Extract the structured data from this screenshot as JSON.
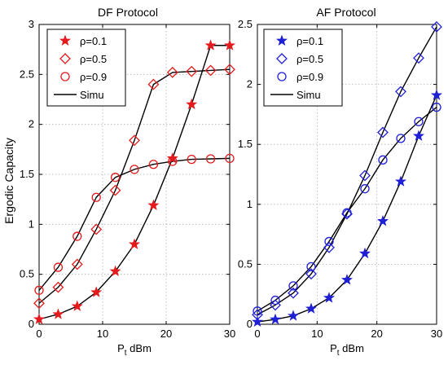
{
  "chart_data": [
    {
      "type": "line",
      "title": "DF Protocol",
      "xlabel": "P",
      "xlabel_sub": "t",
      "xlabel_unit": "dBm",
      "ylabel": "Ergodic Capacity",
      "xlim": [
        0,
        30
      ],
      "ylim": [
        0,
        3
      ],
      "xticks": [
        0,
        10,
        20,
        30
      ],
      "yticks": [
        0,
        0.5,
        1,
        1.5,
        2,
        2.5,
        3
      ],
      "grid": true,
      "legend_position": "top-left",
      "color": "#e41a1c",
      "x": [
        0,
        3,
        6,
        9,
        12,
        15,
        18,
        21,
        24,
        27,
        30
      ],
      "series": [
        {
          "name": "ρ=0.1",
          "marker": "star",
          "values": [
            0.05,
            0.1,
            0.18,
            0.32,
            0.53,
            0.8,
            1.19,
            1.66,
            2.2,
            2.79,
            2.79
          ]
        },
        {
          "name": "ρ=0.5",
          "marker": "diamond",
          "values": [
            0.21,
            0.37,
            0.6,
            0.95,
            1.34,
            1.84,
            2.4,
            2.52,
            2.53,
            2.54,
            2.55
          ]
        },
        {
          "name": "ρ=0.9",
          "marker": "circle",
          "values": [
            0.34,
            0.57,
            0.88,
            1.27,
            1.47,
            1.55,
            1.6,
            1.63,
            1.65,
            1.655,
            1.66
          ]
        }
      ],
      "simu_label": "Simu",
      "simu_color": "#000000"
    },
    {
      "type": "line",
      "title": "AF Protocol",
      "xlabel": "P",
      "xlabel_sub": "t",
      "xlabel_unit": "dBm",
      "ylabel": "",
      "xlim": [
        0,
        30
      ],
      "ylim": [
        0,
        2.5
      ],
      "xticks": [
        0,
        10,
        20,
        30
      ],
      "yticks": [
        0,
        0.5,
        1,
        1.5,
        2,
        2.5
      ],
      "grid": true,
      "legend_position": "top-left",
      "color": "#1f1fd6",
      "x": [
        0,
        3,
        6,
        9,
        12,
        15,
        18,
        21,
        24,
        27,
        30
      ],
      "series": [
        {
          "name": "ρ=0.1",
          "marker": "star",
          "values": [
            0.02,
            0.04,
            0.07,
            0.13,
            0.22,
            0.37,
            0.59,
            0.86,
            1.19,
            1.57,
            1.91
          ]
        },
        {
          "name": "ρ=0.5",
          "marker": "diamond",
          "values": [
            0.08,
            0.16,
            0.26,
            0.42,
            0.64,
            0.92,
            1.24,
            1.6,
            1.94,
            2.22,
            2.48
          ]
        },
        {
          "name": "ρ=0.9",
          "marker": "circle",
          "values": [
            0.11,
            0.2,
            0.32,
            0.48,
            0.69,
            0.93,
            1.13,
            1.37,
            1.55,
            1.69,
            1.81
          ]
        }
      ],
      "simu_label": "Simu",
      "simu_color": "#000000"
    }
  ]
}
